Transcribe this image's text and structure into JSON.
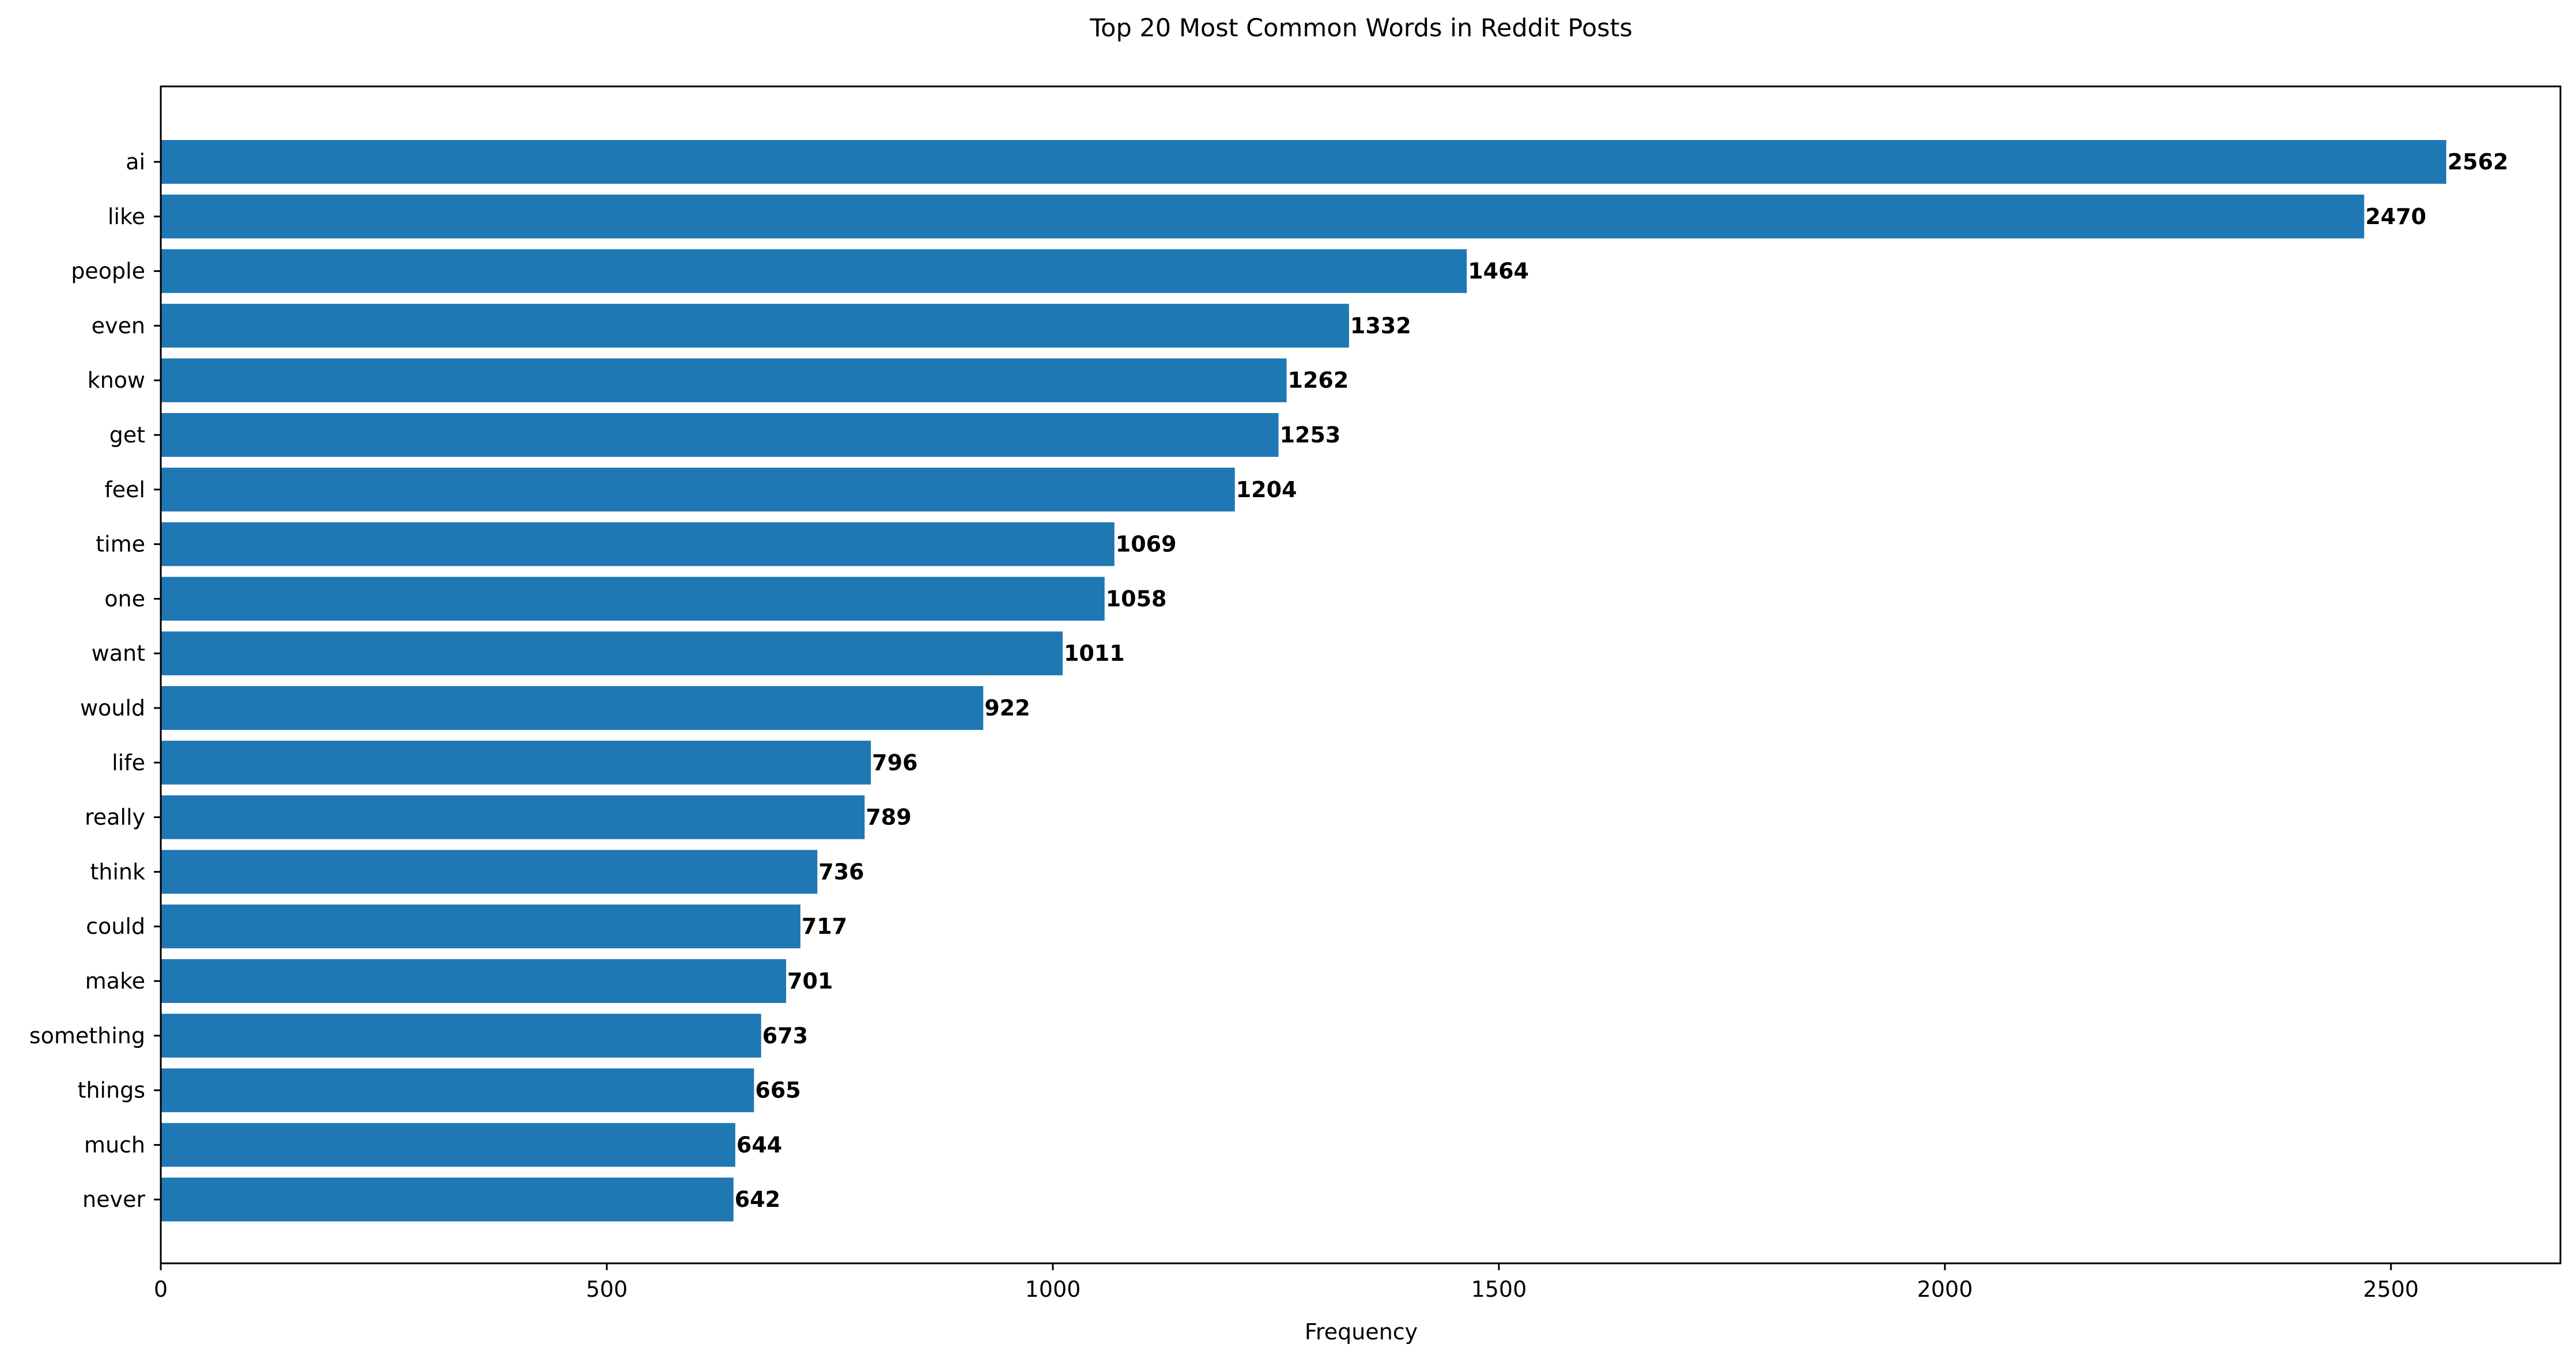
{
  "chart_data": {
    "type": "bar",
    "orientation": "horizontal",
    "title": "Top 20 Most Common Words in Reddit Posts",
    "xlabel": "Frequency",
    "ylabel": "",
    "categories": [
      "ai",
      "like",
      "people",
      "even",
      "know",
      "get",
      "feel",
      "time",
      "one",
      "want",
      "would",
      "life",
      "really",
      "think",
      "could",
      "make",
      "something",
      "things",
      "much",
      "never"
    ],
    "values": [
      2562,
      2470,
      1464,
      1332,
      1262,
      1253,
      1204,
      1069,
      1058,
      1011,
      922,
      796,
      789,
      736,
      717,
      701,
      673,
      665,
      644,
      642
    ],
    "xlim": [
      0,
      2690
    ],
    "xticks": [
      0,
      500,
      1000,
      1500,
      2000,
      2500
    ],
    "bar_color": "#1f77b4",
    "grid": false,
    "legend": false
  }
}
